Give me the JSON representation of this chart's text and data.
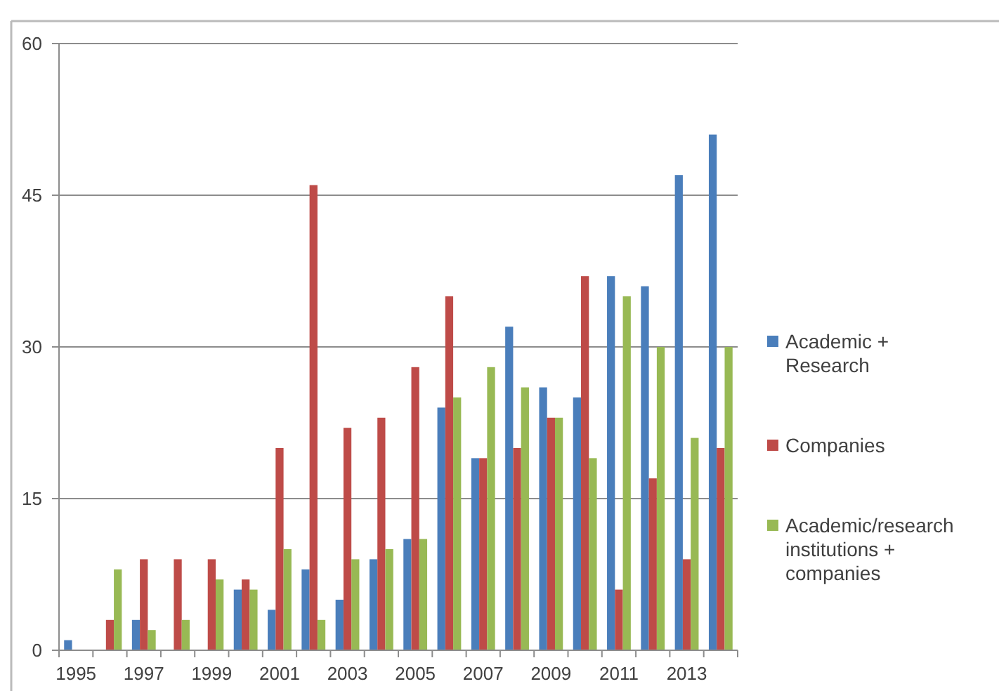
{
  "chart_data": {
    "type": "bar",
    "categories": [
      "1995",
      null,
      "1997",
      null,
      "1999",
      null,
      "2001",
      null,
      "2003",
      null,
      "2005",
      null,
      "2007",
      null,
      "2009",
      null,
      "2011",
      null,
      "2013",
      null
    ],
    "series": [
      {
        "name": "Academic + Research",
        "color": "#4a7ebb",
        "values": [
          1,
          0,
          3,
          0,
          0,
          6,
          4,
          8,
          5,
          9,
          11,
          24,
          19,
          32,
          26,
          25,
          37,
          36,
          47,
          51
        ]
      },
      {
        "name": "Companies",
        "color": "#be4b48",
        "values": [
          0,
          3,
          9,
          9,
          9,
          7,
          20,
          46,
          22,
          23,
          28,
          35,
          19,
          20,
          23,
          37,
          6,
          17,
          9,
          20
        ]
      },
      {
        "name": "Academic/research institutions + companies",
        "color": "#98b954",
        "values": [
          0,
          8,
          2,
          3,
          7,
          6,
          10,
          3,
          9,
          10,
          11,
          25,
          28,
          26,
          23,
          19,
          35,
          30,
          21,
          30
        ]
      }
    ],
    "ylim": [
      0,
      60
    ],
    "yticks": [
      0,
      15,
      30,
      45,
      60
    ],
    "grid": "y",
    "legend": "right"
  }
}
